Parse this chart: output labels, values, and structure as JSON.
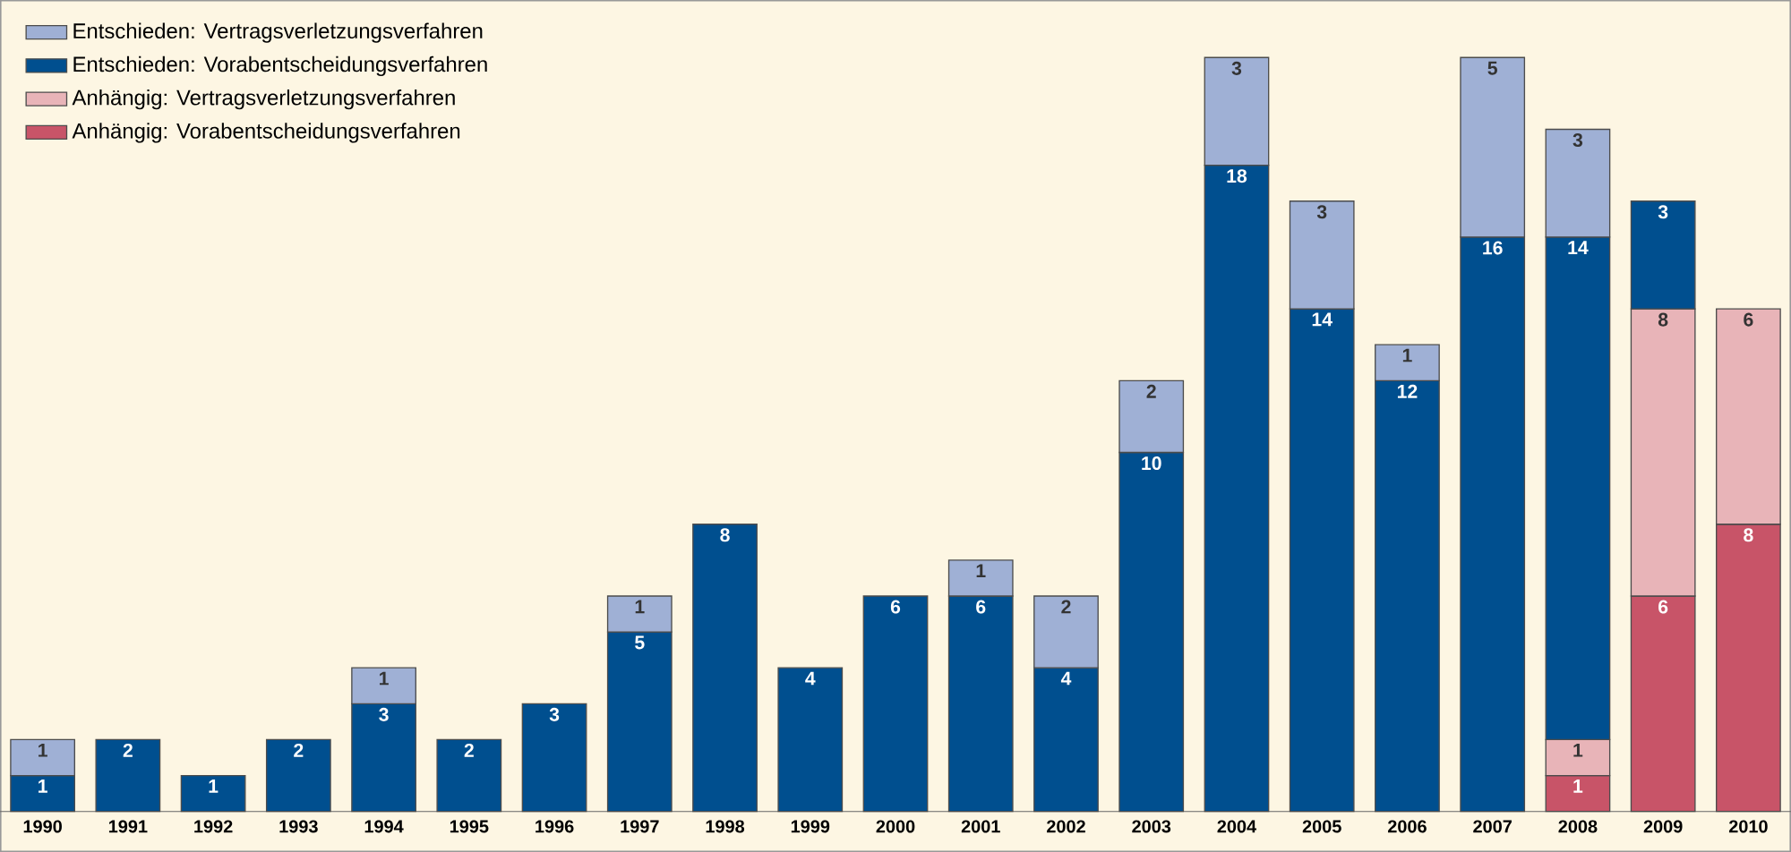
{
  "chart_data": {
    "type": "bar",
    "stacked": true,
    "data_labels": true,
    "legend": "top left",
    "categories": [
      "1990",
      "1991",
      "1992",
      "1993",
      "1994",
      "1995",
      "1996",
      "1997",
      "1998",
      "1999",
      "2000",
      "2001",
      "2002",
      "2003",
      "2004",
      "2005",
      "2006",
      "2007",
      "2008",
      "2009",
      "2010"
    ],
    "series": [
      {
        "name": "Anhängig: Vorabentscheidungsverfahren",
        "color": "#c85468",
        "values": [
          null,
          null,
          null,
          null,
          null,
          null,
          null,
          null,
          null,
          null,
          null,
          null,
          null,
          null,
          null,
          null,
          null,
          null,
          1,
          6,
          8
        ]
      },
      {
        "name": "Anhängig: Vertragsverletzungsverfahren",
        "color": "#e8b4b8",
        "values": [
          null,
          null,
          null,
          null,
          null,
          null,
          null,
          null,
          null,
          null,
          null,
          null,
          null,
          null,
          null,
          null,
          null,
          null,
          1,
          8,
          6
        ]
      },
      {
        "name": "Entschieden: Vorabentscheidungsverfahren",
        "color": "#004f8f",
        "values": [
          1,
          2,
          1,
          2,
          3,
          2,
          3,
          5,
          8,
          4,
          6,
          6,
          4,
          10,
          18,
          14,
          12,
          16,
          14,
          3,
          null
        ]
      },
      {
        "name": "Entschieden: Vertragsverletzungsverfahren",
        "color": "#9fb0d5",
        "values": [
          1,
          null,
          null,
          null,
          1,
          null,
          null,
          1,
          null,
          null,
          null,
          1,
          2,
          2,
          3,
          3,
          1,
          5,
          3,
          null,
          null
        ]
      }
    ]
  }
}
